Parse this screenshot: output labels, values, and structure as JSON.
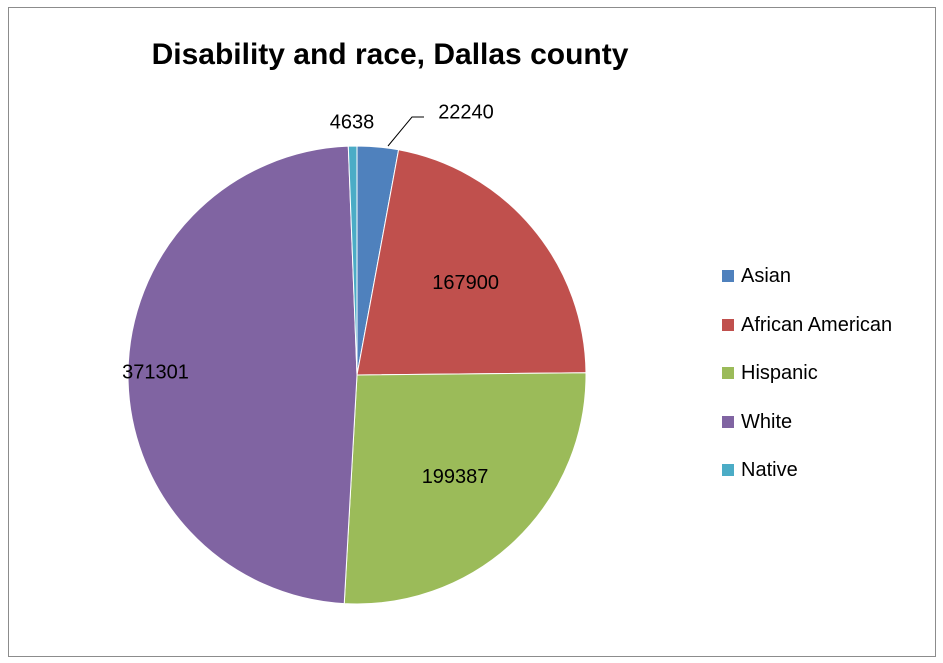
{
  "chart_data": {
    "type": "pie",
    "title": "Disability and race, Dallas county",
    "slices": [
      {
        "label": "Asian",
        "value": 22240,
        "color": "#4f81bd",
        "data_label": "22240"
      },
      {
        "label": "African American",
        "value": 167900,
        "color": "#c0504d",
        "data_label": "167900"
      },
      {
        "label": "Hispanic",
        "value": 199387,
        "color": "#9bbb59",
        "data_label": "199387"
      },
      {
        "label": "White",
        "value": 371301,
        "color": "#8064a2",
        "data_label": "371301"
      },
      {
        "label": "Native",
        "value": 4638,
        "color": "#4bacc6",
        "data_label": "4638"
      }
    ],
    "legend_position": "right",
    "start_angle": "12 o'clock",
    "direction": "clockwise"
  },
  "legend": {
    "items": [
      {
        "label": "Asian",
        "color": "#4f81bd"
      },
      {
        "label": "African American",
        "color": "#c0504d"
      },
      {
        "label": "Hispanic",
        "color": "#9bbb59"
      },
      {
        "label": "White",
        "color": "#8064a2"
      },
      {
        "label": "Native",
        "color": "#4bacc6"
      }
    ]
  }
}
